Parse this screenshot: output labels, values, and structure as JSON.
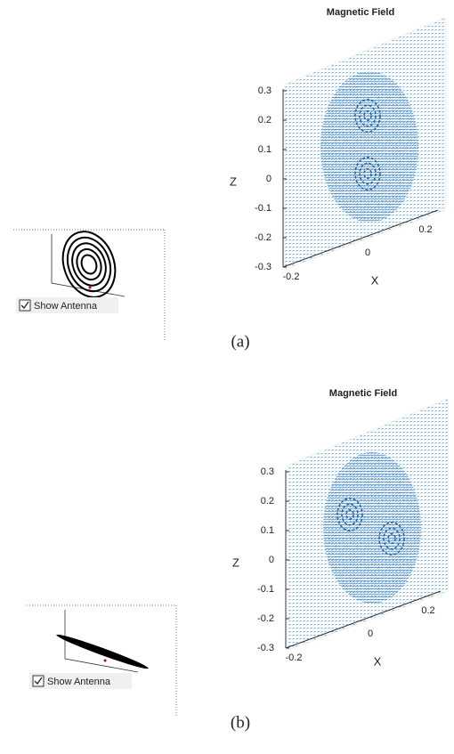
{
  "panels": [
    {
      "title": "Magnetic Field",
      "z_label": "Z",
      "x_label": "X",
      "z_ticks": [
        "0.3",
        "0.2",
        "0.1",
        "0",
        "-0.1",
        "-0.2",
        "-0.3"
      ],
      "x_ticks": [
        "-0.2",
        "0",
        "0.2"
      ],
      "checkbox": "Show Antenna",
      "caption": "(a)"
    },
    {
      "title": "Magnetic Field",
      "z_label": "Z",
      "x_label": "X",
      "z_ticks": [
        "0.3",
        "0.2",
        "0.1",
        "0",
        "-0.1",
        "-0.2",
        "-0.3"
      ],
      "x_ticks": [
        "-0.2",
        "0",
        "0.2"
      ],
      "checkbox": "Show Antenna",
      "caption": "(b)"
    }
  ]
}
